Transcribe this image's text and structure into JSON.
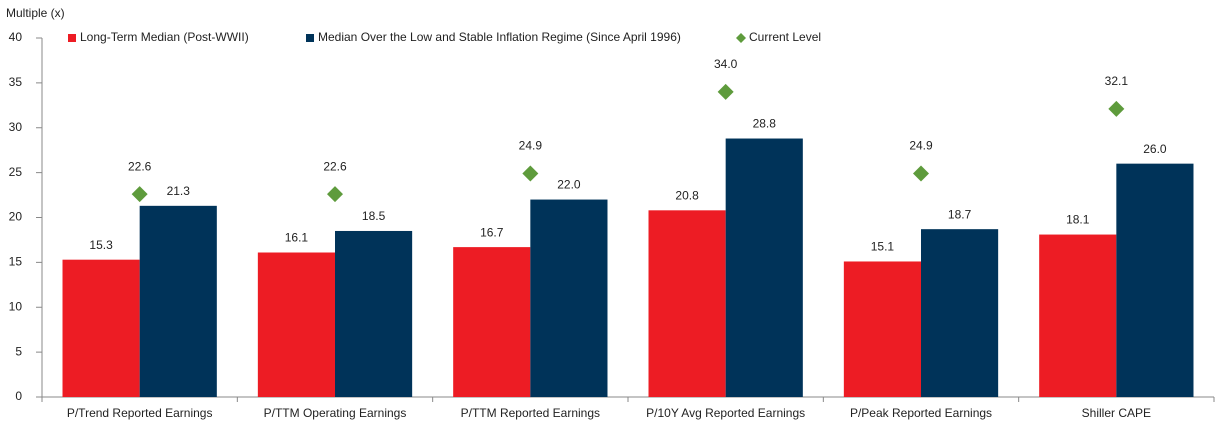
{
  "chart_data": {
    "type": "bar",
    "y_axis_label": "Multiple (x)",
    "categories": [
      "P/Trend Reported Earnings",
      "P/TTM Operating Earnings",
      "P/TTM Reported Earnings",
      "P/10Y Avg Reported Earnings",
      "P/Peak Reported Earnings",
      "Shiller CAPE"
    ],
    "series": [
      {
        "name": "Long-Term Median (Post-WWII)",
        "color": "#ed1c24",
        "type": "bar",
        "values": [
          15.3,
          16.1,
          16.7,
          20.8,
          15.1,
          18.1
        ],
        "value_labels": [
          "15.3",
          "16.1",
          "16.7",
          "20.8",
          "15.1",
          "18.1"
        ]
      },
      {
        "name": "Median Over the Low and Stable Inflation Regime (Since April 1996)",
        "color": "#003359",
        "type": "bar",
        "values": [
          21.3,
          18.5,
          22.0,
          28.8,
          18.7,
          26.0
        ],
        "value_labels": [
          "21.3",
          "18.5",
          "22.0",
          "28.8",
          "18.7",
          "26.0"
        ]
      },
      {
        "name": "Current Level",
        "color": "#5e9b3c",
        "type": "scatter",
        "marker": "diamond",
        "values": [
          22.6,
          22.6,
          24.9,
          34.0,
          24.9,
          32.1
        ],
        "value_labels": [
          "22.6",
          "22.6",
          "24.9",
          "34.0",
          "24.9",
          "32.1"
        ]
      }
    ],
    "ylim": [
      0,
      40
    ],
    "yticks": [
      0,
      5,
      10,
      15,
      20,
      25,
      30,
      35,
      40
    ],
    "grid": false,
    "legend": "top"
  }
}
